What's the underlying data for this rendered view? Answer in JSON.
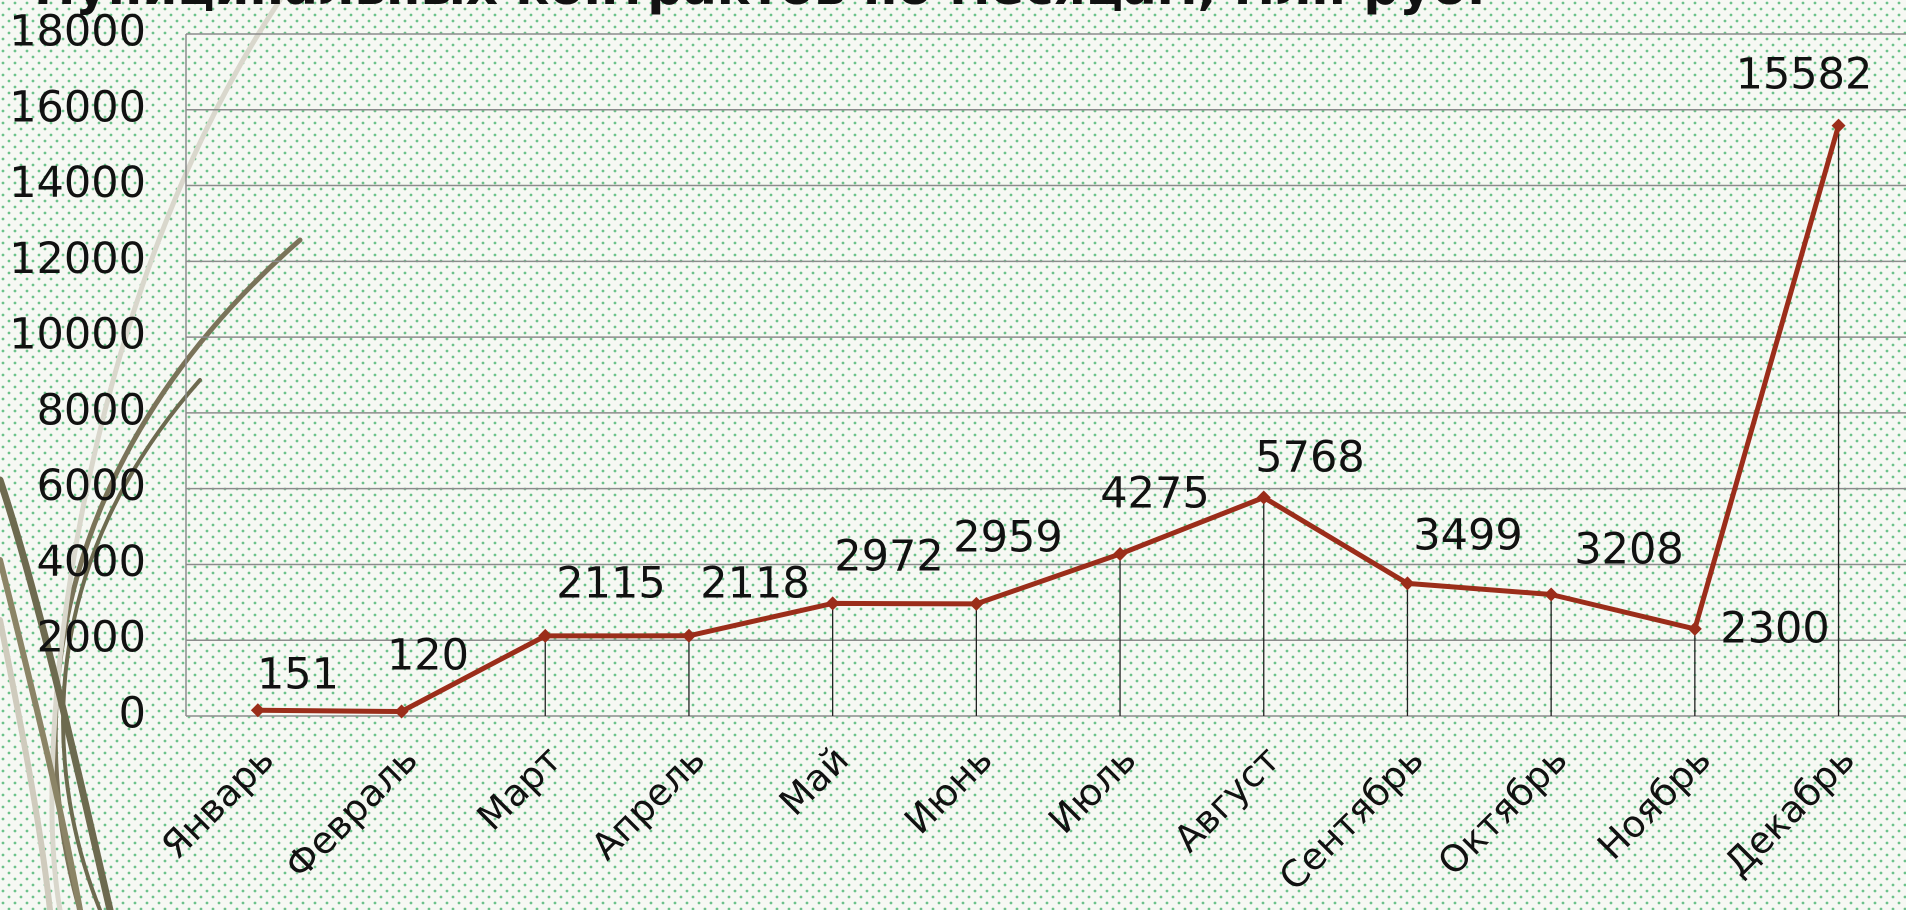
{
  "chart_data": {
    "type": "line",
    "title": "муниципальных контрактов по месяцам, млн руб.",
    "categories": [
      "Январь",
      "Февраль",
      "Март",
      "Апрель",
      "Май",
      "Июнь",
      "Июль",
      "Август",
      "Сентябрь",
      "Октябрь",
      "Ноябрь",
      "Декабрь"
    ],
    "values": [
      151,
      120,
      2115,
      2118,
      2972,
      2959,
      4275,
      5768,
      3499,
      3208,
      2300,
      15582
    ],
    "color": "#9b2d1a",
    "ylim": [
      0,
      18000
    ],
    "yticks": [
      0,
      2000,
      4000,
      6000,
      8000,
      10000,
      12000,
      14000,
      16000,
      18000
    ],
    "grid": true
  }
}
